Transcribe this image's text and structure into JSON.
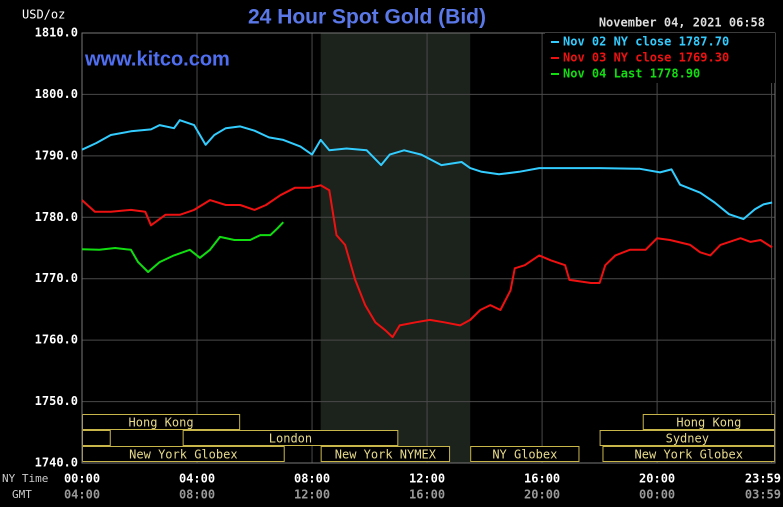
{
  "chart_data": {
    "type": "line",
    "title": "24 Hour Spot Gold (Bid)",
    "y_label": "USD/oz",
    "watermark": "www.kitco.com",
    "timestamp": "November 04, 2021 06:58",
    "x_row_labels": [
      "NY Time",
      "GMT"
    ],
    "xlim": [
      0,
      24.1
    ],
    "xticks": [
      {
        "value": 0,
        "label": "00:00"
      },
      {
        "value": 4,
        "label": "04:00"
      },
      {
        "value": 8,
        "label": "08:00"
      },
      {
        "value": 12,
        "label": "12:00"
      },
      {
        "value": 16,
        "label": "16:00"
      },
      {
        "value": 20,
        "label": "20:00"
      },
      {
        "value": 23.98,
        "label": "23:59"
      }
    ],
    "xticks_gmt": [
      "04:00",
      "08:00",
      "12:00",
      "16:00",
      "20:00",
      "00:00",
      "03:59"
    ],
    "ylim": [
      1740,
      1810
    ],
    "yticks": [
      {
        "value": 1740,
        "label": "1740.0"
      },
      {
        "value": 1750,
        "label": "1750.0"
      },
      {
        "value": 1760,
        "label": "1760.0"
      },
      {
        "value": 1770,
        "label": "1770.0"
      },
      {
        "value": 1780,
        "label": "1780.0"
      },
      {
        "value": 1790,
        "label": "1790.0"
      },
      {
        "value": 1800,
        "label": "1800.0"
      },
      {
        "value": 1810,
        "label": "1810.0"
      }
    ],
    "grid": true,
    "shade": {
      "start": 8.3,
      "end": 13.5
    },
    "sessions": [
      [
        {
          "label": "Hong Kong",
          "start": 0,
          "end": 5.5
        },
        {
          "label": "Hong Kong",
          "start": 19.5,
          "end": 24.1
        }
      ],
      [
        {
          "start": 0,
          "end": 1
        },
        {
          "label": "London",
          "start": 3.5,
          "end": 11
        },
        {
          "label": "Sydney",
          "start": 18,
          "end": 24.1
        }
      ],
      [
        {
          "label": "New York Globex",
          "start": 0,
          "end": 7.05
        },
        {
          "label": "New York NYMEX",
          "start": 8.3,
          "end": 12.8
        },
        {
          "label": "NY Globex",
          "start": 13.5,
          "end": 17.3
        },
        {
          "label": "New York Globex",
          "start": 18.1,
          "end": 24.1
        }
      ]
    ],
    "series": [
      {
        "name": "Nov 02 NY close 1787.70",
        "color": "#33ccff",
        "x": [
          0,
          0.5,
          1.0,
          1.7,
          2.4,
          2.7,
          3.2,
          3.4,
          3.9,
          4.3,
          4.6,
          5.0,
          5.5,
          6.0,
          6.5,
          7.0,
          7.6,
          8.0,
          8.3,
          8.6,
          9.2,
          9.9,
          10.4,
          10.7,
          11.2,
          11.8,
          12.5,
          13.2,
          13.5,
          13.9,
          14.5,
          15.2,
          15.9,
          16.6,
          18.0,
          19.4,
          20.1,
          20.5,
          20.8,
          21.5,
          22.0,
          22.5,
          23.0,
          23.4,
          23.7,
          24.0
        ],
        "values": [
          1791.0,
          1792.1,
          1793.4,
          1794.0,
          1794.3,
          1795.0,
          1794.5,
          1795.8,
          1795.0,
          1791.8,
          1793.4,
          1794.5,
          1794.8,
          1794.1,
          1793.0,
          1792.6,
          1791.5,
          1790.2,
          1792.6,
          1790.9,
          1791.2,
          1790.9,
          1788.5,
          1790.2,
          1790.9,
          1790.2,
          1788.5,
          1789.0,
          1788.0,
          1787.4,
          1787.0,
          1787.4,
          1788.0,
          1788.0,
          1788.0,
          1787.9,
          1787.3,
          1787.8,
          1785.3,
          1784.0,
          1782.4,
          1780.5,
          1779.7,
          1781.3,
          1782.1,
          1782.4
        ]
      },
      {
        "name": "Nov 03 NY close 1769.30",
        "color": "#ee1111",
        "x": [
          0,
          0.45,
          1.0,
          1.7,
          2.2,
          2.4,
          2.9,
          3.4,
          3.9,
          4.45,
          5.0,
          5.5,
          6.0,
          6.4,
          6.9,
          7.4,
          7.9,
          8.3,
          8.6,
          8.85,
          9.15,
          9.5,
          9.85,
          10.2,
          10.55,
          10.8,
          11.05,
          11.6,
          12.1,
          12.6,
          13.15,
          13.5,
          13.85,
          14.2,
          14.55,
          14.9,
          15.05,
          15.4,
          15.9,
          16.3,
          16.8,
          16.95,
          17.7,
          18.0,
          18.2,
          18.55,
          19.05,
          19.6,
          20.0,
          20.45,
          21.15,
          21.5,
          21.85,
          22.2,
          22.9,
          23.25,
          23.6,
          24.0
        ],
        "values": [
          1782.8,
          1780.9,
          1780.9,
          1781.2,
          1780.9,
          1778.7,
          1780.4,
          1780.4,
          1781.2,
          1782.8,
          1782.0,
          1782.0,
          1781.2,
          1782.0,
          1783.6,
          1784.8,
          1784.8,
          1785.2,
          1784.4,
          1777.1,
          1775.5,
          1769.8,
          1765.7,
          1762.9,
          1761.6,
          1760.5,
          1762.4,
          1762.9,
          1763.3,
          1762.9,
          1762.4,
          1763.3,
          1764.9,
          1765.7,
          1764.9,
          1768.1,
          1771.7,
          1772.2,
          1773.8,
          1773.0,
          1772.2,
          1769.8,
          1769.3,
          1769.3,
          1772.2,
          1773.8,
          1774.7,
          1774.7,
          1776.6,
          1776.3,
          1775.5,
          1774.3,
          1773.8,
          1775.5,
          1776.6,
          1776.0,
          1776.3,
          1775.1
        ]
      },
      {
        "name": "Nov 04 Last 1778.90",
        "color": "#11dd11",
        "x": [
          0,
          0.6,
          1.15,
          1.7,
          1.95,
          2.3,
          2.7,
          3.2,
          3.75,
          4.1,
          4.45,
          4.8,
          5.3,
          5.85,
          6.2,
          6.55,
          6.8,
          7.0
        ],
        "values": [
          1774.8,
          1774.7,
          1775.0,
          1774.7,
          1772.7,
          1771.1,
          1772.7,
          1773.8,
          1774.7,
          1773.4,
          1774.7,
          1776.8,
          1776.3,
          1776.3,
          1777.1,
          1777.1,
          1778.2,
          1779.2
        ]
      }
    ]
  }
}
